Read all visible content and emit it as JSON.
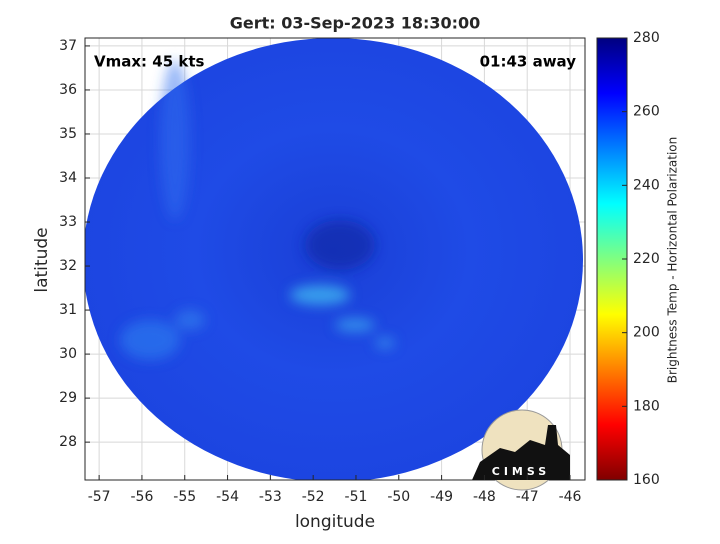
{
  "chart_data": {
    "type": "image",
    "title": "Gert: 03-Sep-2023 18:30:00",
    "annotations": [
      "Vmax: 45 kts",
      "01:43 away"
    ],
    "xlabel": "longitude",
    "ylabel": "latitude",
    "xlim": [
      -57.33,
      -45.65
    ],
    "xticks": [
      -57,
      -56,
      -55,
      -54,
      -53,
      -52,
      -51,
      -50,
      -49,
      -48,
      -47,
      -46
    ],
    "ylim": [
      27.14,
      37.18
    ],
    "yticks": [
      28,
      29,
      30,
      31,
      32,
      33,
      34,
      35,
      36,
      37
    ],
    "grid": true,
    "colorbar": {
      "label": "Brightness Temp - Horizontal Polarization",
      "lim": [
        160,
        280
      ],
      "ticks": [
        160,
        180,
        200,
        220,
        240,
        260,
        280
      ]
    },
    "logo": "CIMSS"
  }
}
